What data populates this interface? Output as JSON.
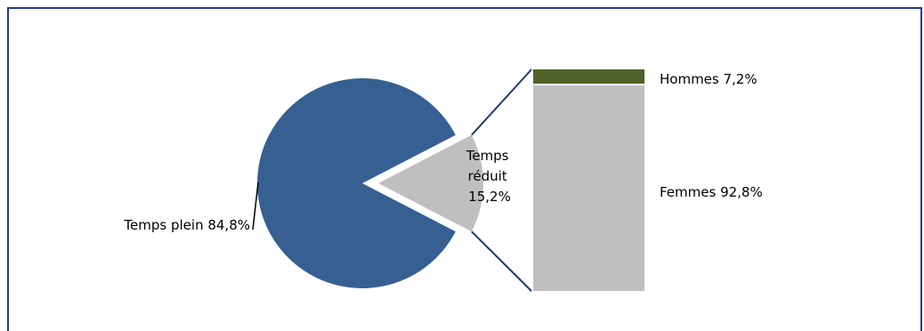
{
  "chart_data": {
    "type": "bar-of-pie",
    "pie": {
      "slices": [
        {
          "label": "Temps plein 84,8%",
          "value": 84.8,
          "color": "#376092"
        },
        {
          "label_lines": [
            "Temps",
            "réduit",
            "15,2%"
          ],
          "value": 15.2,
          "color": "#BFBFBF"
        }
      ]
    },
    "breakdown_bar": {
      "segments": [
        {
          "label": "Hommes 7,2%",
          "value": 7.2,
          "color": "#4F6228"
        },
        {
          "label": "Femmes 92,8%",
          "value": 92.8,
          "color": "#BFBFBF"
        }
      ]
    }
  }
}
